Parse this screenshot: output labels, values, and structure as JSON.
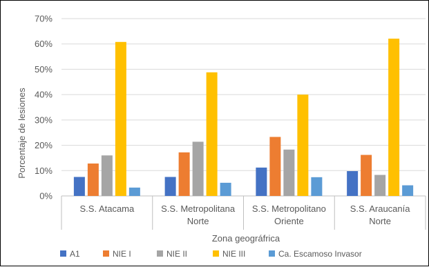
{
  "chart_data": {
    "type": "bar",
    "title": "",
    "xlabel": "Zona geográfrica",
    "ylabel": "Porcentaje de lesiones",
    "ylim": [
      0,
      70
    ],
    "yticks": [
      "0%",
      "10%",
      "20%",
      "30%",
      "40%",
      "50%",
      "60%",
      "70%"
    ],
    "grid": true,
    "legend_position": "bottom",
    "categories": [
      [
        "S.S. Atacama"
      ],
      [
        "S.S. Metropolitana",
        "Norte"
      ],
      [
        "S.S. Metropolitano",
        "Oriente"
      ],
      [
        "S.S. Araucanía",
        "Norte"
      ]
    ],
    "series": [
      {
        "name": "A1",
        "color": "#4472C4",
        "values": [
          7.5,
          7.5,
          11.2,
          9.8
        ]
      },
      {
        "name": "NIE I",
        "color": "#ED7D31",
        "values": [
          12.8,
          17.2,
          23.3,
          16.2
        ]
      },
      {
        "name": "NIE II",
        "color": "#A5A5A5",
        "values": [
          16.0,
          21.4,
          18.3,
          8.3
        ]
      },
      {
        "name": "NIE III",
        "color": "#FFC000",
        "values": [
          60.8,
          48.8,
          40.0,
          62.1
        ]
      },
      {
        "name": "Ca. Escamoso Invasor",
        "color": "#5B9BD5",
        "values": [
          3.3,
          5.2,
          7.4,
          4.2
        ]
      }
    ]
  }
}
